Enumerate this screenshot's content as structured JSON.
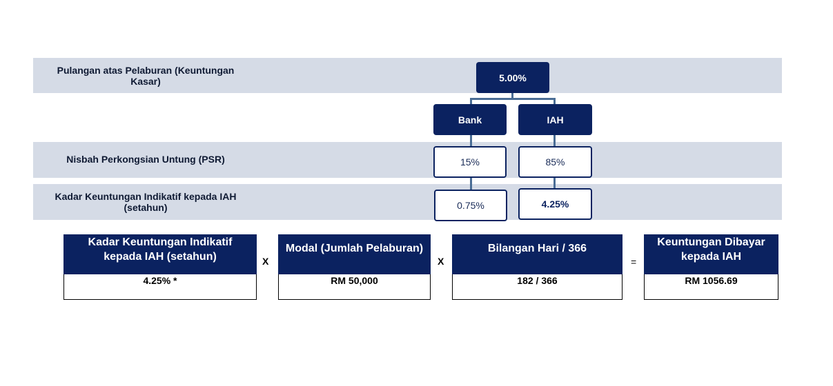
{
  "rows": {
    "gross_return_label": "Pulangan atas Pelaburan (Keuntungan Kasar)",
    "psr_label": "Nisbah Perkongsian Untung (PSR)",
    "rate_label": "Kadar Keuntungan Indikatif kepada IAH (setahun)"
  },
  "tree": {
    "gross_rate": "5.00%",
    "bank_label": "Bank",
    "iah_label": "IAH",
    "bank_psr": "15%",
    "iah_psr": "85%",
    "bank_rate": "0.75%",
    "iah_rate": "4.25%"
  },
  "formula": {
    "terms": [
      {
        "header": "Kadar Keuntungan Indikatif kepada IAH (setahun)",
        "value": "4.25% *"
      },
      {
        "header": "Modal (Jumlah Pelaburan)",
        "value": "RM 50,000"
      },
      {
        "header": "Bilangan Hari / 366",
        "value": "182 / 366"
      },
      {
        "header": "Keuntungan Dibayar kepada IAH",
        "value": "RM 1056.69"
      }
    ],
    "multiply_symbol": "X",
    "equals_symbol": "="
  }
}
